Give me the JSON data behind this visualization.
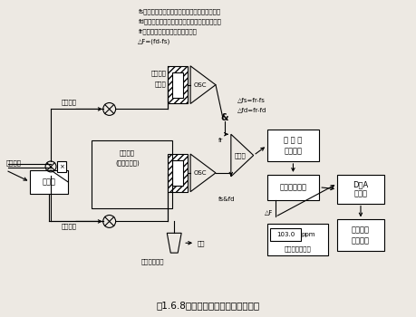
{
  "title": "図1.6.8　水晶発振式水分計の構成例",
  "legend_lines": [
    "fs：測定ガスに対する水分センサの発振周波数",
    "fd：乾燥ガスに対する水分センサの発振周波数",
    "fr：基準水晶発振子の発振周波数",
    "△F=(fd-fs)"
  ],
  "bg_color": "#ede9e3",
  "box_color": "white",
  "line_color": "black"
}
